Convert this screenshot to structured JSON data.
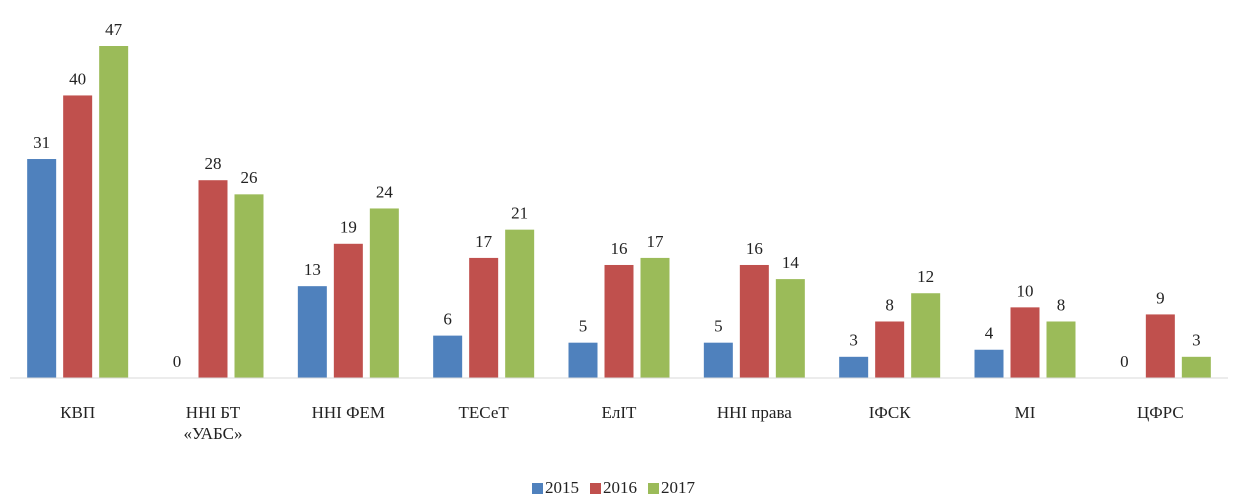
{
  "chart_data": {
    "type": "bar",
    "categories": [
      "КВП",
      "ННІ БТ «УАБС»",
      "ННІ ФЕМ",
      "ТЕСеТ",
      "ЕлІТ",
      "ННІ права",
      "ІФСК",
      "МІ",
      "ЦФРС"
    ],
    "series": [
      {
        "name": "2015",
        "color": "#4f81bd",
        "values": [
          31,
          0,
          13,
          6,
          5,
          5,
          3,
          4,
          0
        ]
      },
      {
        "name": "2016",
        "color": "#c0504d",
        "values": [
          40,
          28,
          19,
          17,
          16,
          16,
          8,
          10,
          9
        ]
      },
      {
        "name": "2017",
        "color": "#9bbb59",
        "values": [
          47,
          26,
          24,
          21,
          17,
          14,
          12,
          8,
          3
        ]
      }
    ],
    "legend": "bottom"
  }
}
